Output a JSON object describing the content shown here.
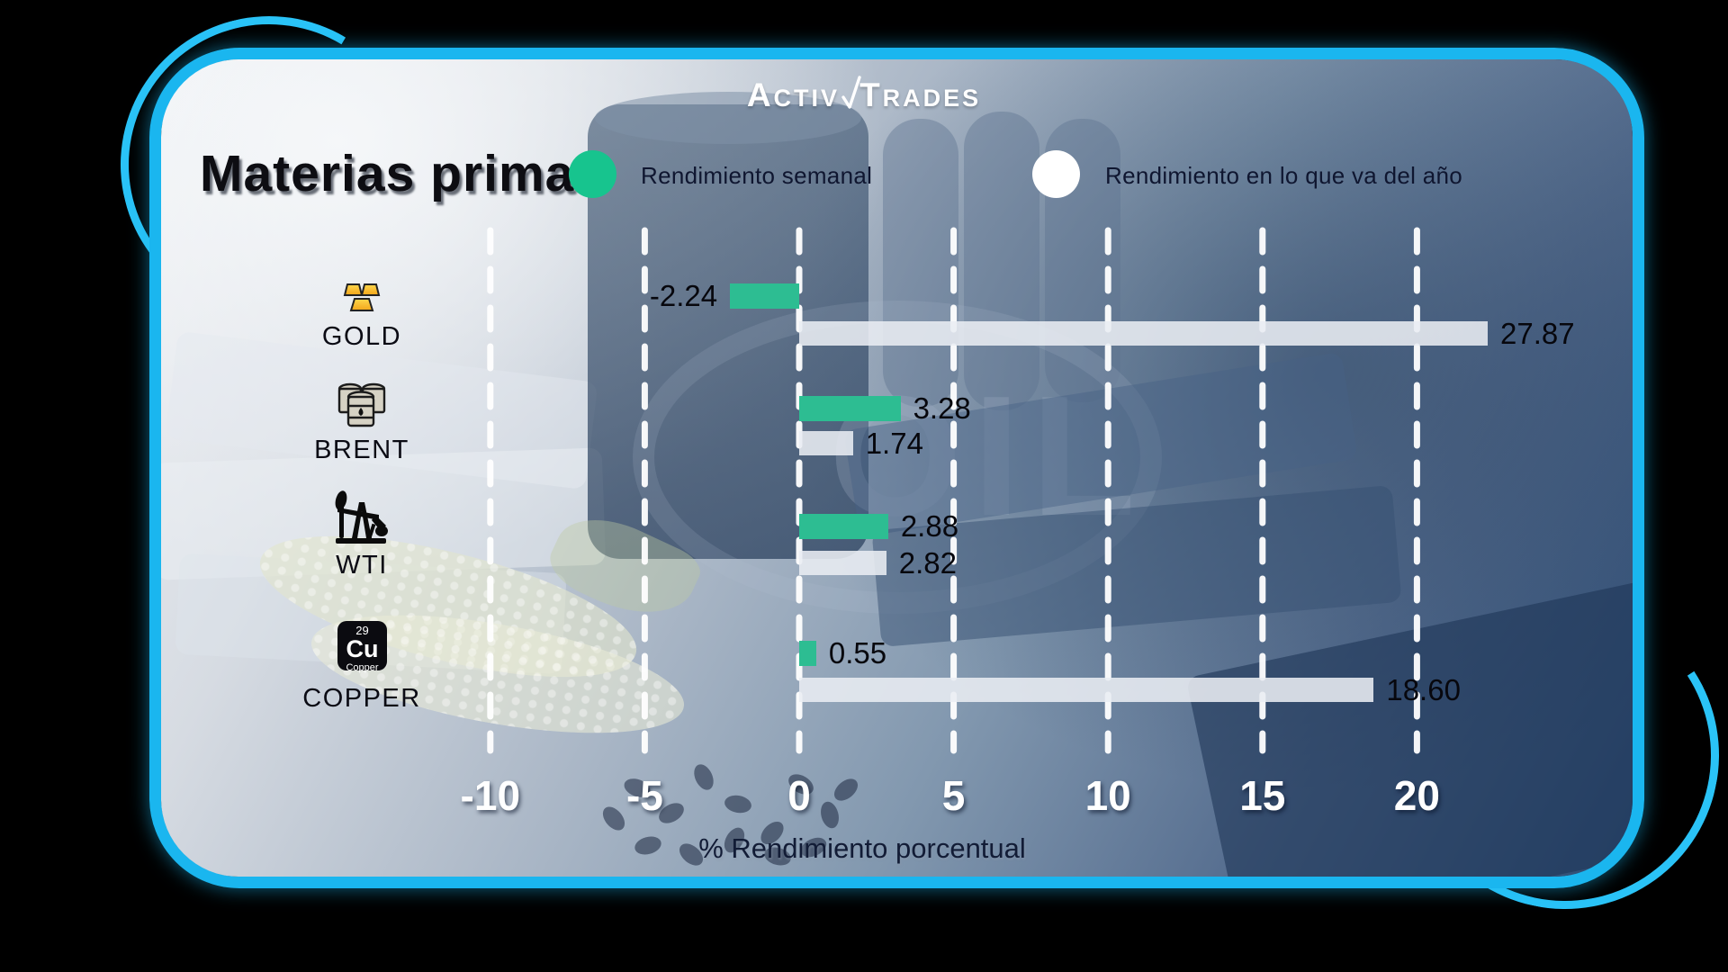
{
  "brand": {
    "logo_left": "Activ",
    "logo_right": "Trades"
  },
  "title": "Materias primas",
  "legend": {
    "weekly": {
      "label": "Rendimiento semanal",
      "color": "#17c48e"
    },
    "ytd": {
      "label": "Rendimiento en lo que va del año",
      "color": "#ffffff"
    }
  },
  "background": {
    "oil_text": "OIL"
  },
  "copper_tile": {
    "number": "29",
    "symbol": "Cu",
    "name": "Copper"
  },
  "chart_data": {
    "type": "bar",
    "orientation": "horizontal",
    "title": "Materias primas",
    "xlabel": "% Rendimiento porcentual",
    "xlim": [
      -10,
      22.5
    ],
    "x_ticks": [
      "-10",
      "-5",
      "0",
      "5",
      "10",
      "15",
      "20"
    ],
    "x_tick_values": [
      -10,
      -5,
      0,
      5,
      10,
      15,
      20
    ],
    "grid": "vertical-dashed-white",
    "legend_position": "top",
    "categories": [
      "GOLD",
      "BRENT",
      "WTI",
      "COPPER"
    ],
    "series": [
      {
        "name": "Rendimiento semanal",
        "color": "#2dbd92",
        "values": [
          -2.24,
          3.28,
          2.88,
          0.55
        ],
        "labels": [
          "-2.24",
          "3.28",
          "2.88",
          "0.55"
        ]
      },
      {
        "name": "Rendimiento en lo que va del año",
        "color": "#e9edf3",
        "values": [
          27.87,
          1.74,
          2.82,
          18.6
        ],
        "labels": [
          "27.87",
          "1.74",
          "2.82",
          "18.60"
        ]
      }
    ]
  }
}
